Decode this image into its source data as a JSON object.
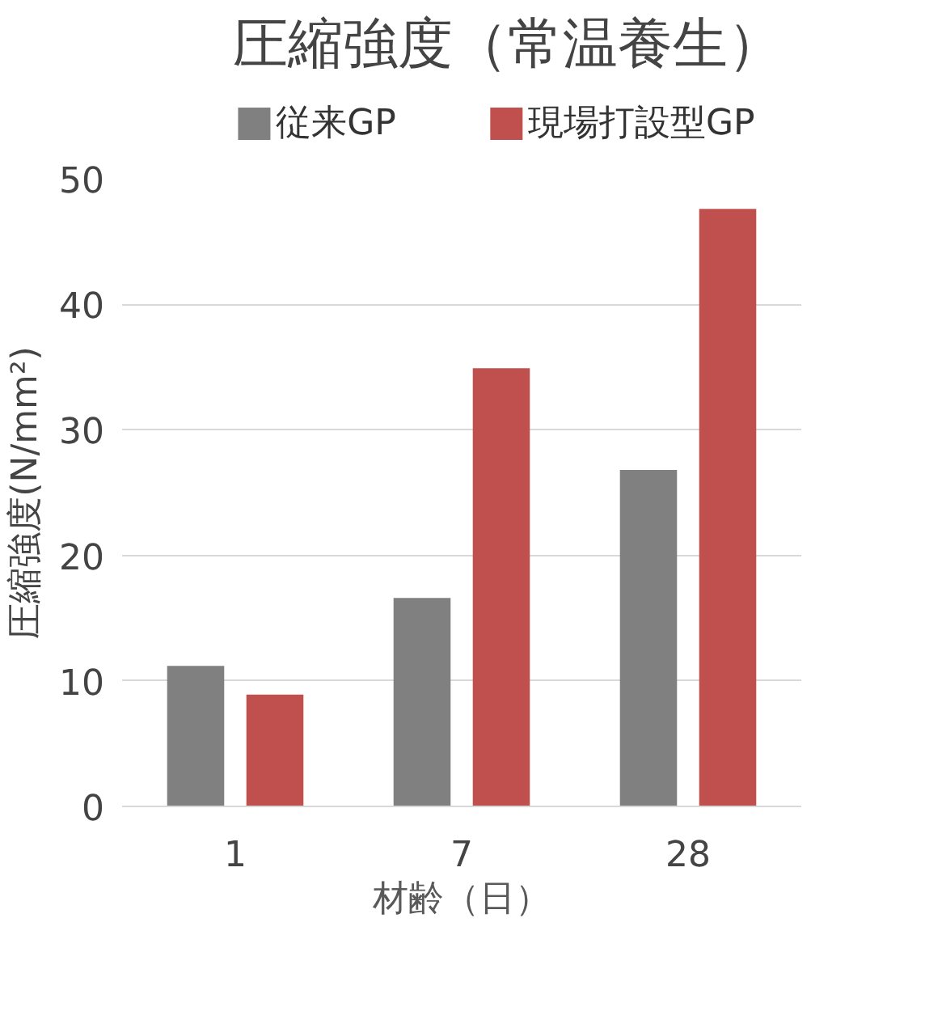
{
  "chart_data": {
    "type": "bar",
    "title": "圧縮強度（常温養生）",
    "xlabel": "材齢（日）",
    "ylabel": "圧縮強度(N/mm²)",
    "categories": [
      "1",
      "7",
      "28"
    ],
    "series": [
      {
        "name": "従来GP",
        "color": "#808080",
        "values": [
          11.2,
          16.6,
          26.8
        ]
      },
      {
        "name": "現場打設型GP",
        "color": "#c0504d",
        "values": [
          8.9,
          34.9,
          47.6
        ]
      }
    ],
    "ylim": [
      0,
      50
    ],
    "yticks": [
      0,
      10,
      20,
      30,
      40,
      50
    ],
    "grid": "y",
    "legend": "top"
  }
}
